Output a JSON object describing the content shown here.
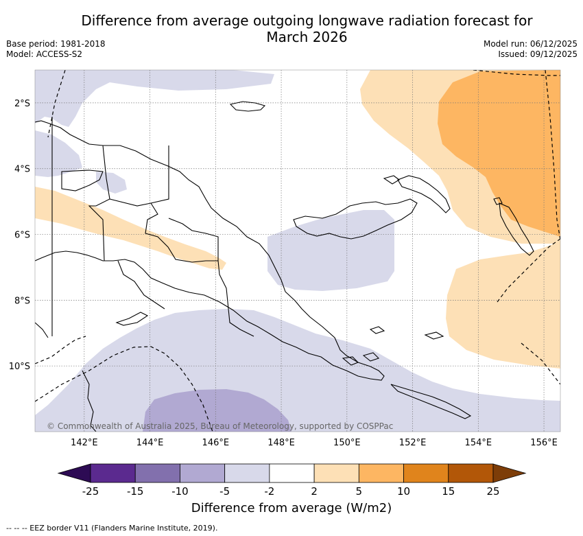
{
  "header": {
    "title_line1": "Difference from average outgoing longwave radiation forecast for",
    "title_line2": "March 2026",
    "base_period": "Base period: 1981-2018",
    "model": "Model: ACCESS-S2",
    "model_run": "Model run: 06/12/2025",
    "issued": "Issued: 09/12/2025"
  },
  "chart_data": {
    "type": "heatmap",
    "title": "Difference from average outgoing longwave radiation forecast for March 2026",
    "region": "Papua New Guinea",
    "xlim": [
      140.5,
      156.5
    ],
    "ylim": [
      -12,
      -1
    ],
    "x_ticks": [
      142,
      144,
      146,
      148,
      150,
      152,
      154,
      156
    ],
    "x_tick_labels": [
      "142°E",
      "144°E",
      "146°E",
      "148°E",
      "150°E",
      "152°E",
      "154°E",
      "156°E"
    ],
    "y_ticks": [
      -2,
      -4,
      -6,
      -8,
      -10
    ],
    "y_tick_labels": [
      "2°S",
      "4°S",
      "6°S",
      "8°S",
      "10°S"
    ],
    "colorbar": {
      "label": "Difference from average (W/m2)",
      "tick_labels": [
        "-25",
        "-15",
        "-10",
        "-5",
        "-2",
        "2",
        "5",
        "10",
        "15",
        "25"
      ],
      "bins": [
        {
          "range": "< -25",
          "color": "#2d0b54"
        },
        {
          "range": "-25 to -15",
          "color": "#5b2a8f"
        },
        {
          "range": "-15 to -10",
          "color": "#8270ad"
        },
        {
          "range": "-10 to -5",
          "color": "#b1a9d2"
        },
        {
          "range": "-5 to -2",
          "color": "#d8d9ea"
        },
        {
          "range": "-2 to 2",
          "color": "#ffffff"
        },
        {
          "range": "2 to 5",
          "color": "#fde0b6"
        },
        {
          "range": "5 to 10",
          "color": "#fdb662"
        },
        {
          "range": "10 to 15",
          "color": "#e0841c"
        },
        {
          "range": "15 to 25",
          "color": "#b25708"
        },
        {
          "range": "> 25",
          "color": "#7d3d08"
        }
      ]
    },
    "anomaly_regions": [
      {
        "name": "north-west",
        "level": "-5 to -2",
        "color": "#d8d9ea"
      },
      {
        "name": "central-png",
        "level": "-5 to -2",
        "color": "#d8d9ea"
      },
      {
        "name": "southern-coral-sea",
        "level": "-5 to -2",
        "color": "#d8d9ea"
      },
      {
        "name": "southern-core",
        "level": "-10 to -5",
        "color": "#b1a9d2"
      },
      {
        "name": "highlands-band",
        "level": "2 to 5",
        "color": "#fde0b6"
      },
      {
        "name": "north-east",
        "level": "2 to 5",
        "color": "#fde0b6"
      },
      {
        "name": "east",
        "level": "2 to 5",
        "color": "#fde0b6"
      },
      {
        "name": "north-east-core",
        "level": "5 to 10",
        "color": "#fdb662"
      }
    ]
  },
  "copyright": "© Commonwealth of Australia 2025, Bureau of Meteorology, supported by COSPPac",
  "footer": {
    "legend_text": "-- EEZ border V11 (Flanders Marine Institute, 2019)."
  }
}
